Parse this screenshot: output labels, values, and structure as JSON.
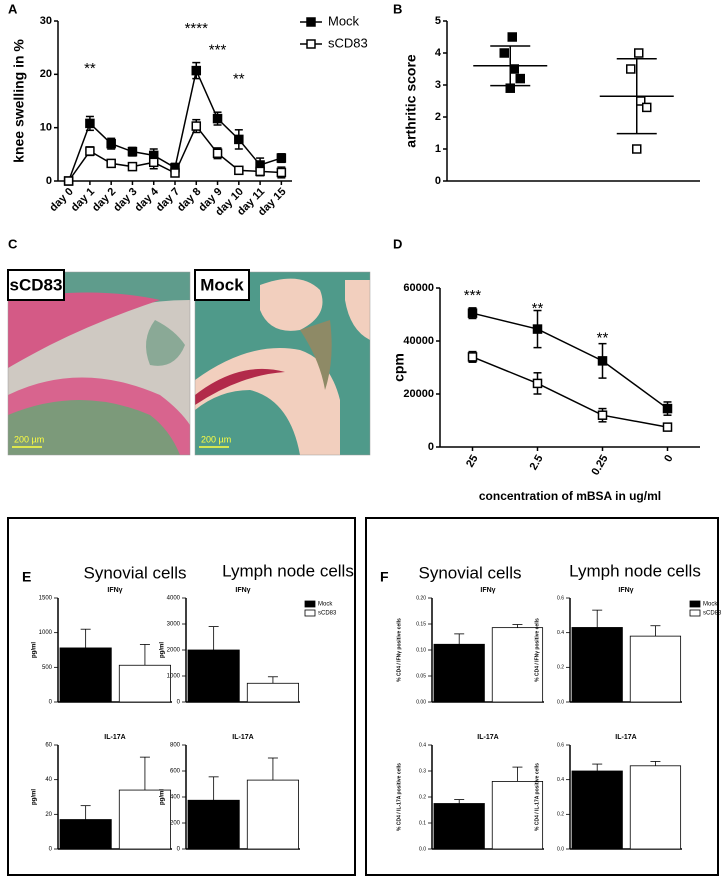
{
  "chart_data": [
    {
      "panel": "A",
      "type": "line",
      "y_label": "knee swelling in %",
      "categories": [
        "day 0",
        "day 1",
        "day 2",
        "day 3",
        "day 4",
        "day 7",
        "day 8",
        "day 9",
        "day 10",
        "day 11",
        "day 15"
      ],
      "series": [
        {
          "name": "Mock",
          "color": "#000000",
          "fill": "#000000",
          "values": [
            0,
            10.8,
            7,
            5.5,
            4.8,
            2.5,
            20.7,
            11.7,
            7.8,
            3,
            4.3
          ],
          "errors": [
            0,
            1.3,
            1,
            0.8,
            1.2,
            0.8,
            1.5,
            1.2,
            1.8,
            1.3,
            0.8
          ]
        },
        {
          "name": "sCD83",
          "color": "#000000",
          "fill": "#ffffff",
          "values": [
            0,
            5.6,
            3.3,
            2.7,
            3.5,
            1.5,
            10.3,
            5.2,
            2,
            1.8,
            1.6
          ],
          "errors": [
            0,
            0.8,
            0.7,
            0.7,
            1.2,
            0.5,
            1.2,
            1,
            0.5,
            0.8,
            1
          ]
        }
      ],
      "ylim": [
        0,
        30
      ],
      "yticks": [
        0,
        10,
        20,
        30
      ],
      "legend": "upper right",
      "annotations": [
        "**",
        "****",
        "***",
        "**"
      ]
    },
    {
      "panel": "B",
      "type": "dot",
      "y_label": "arthritic score",
      "series": [
        {
          "color": "#000000",
          "fill": "#000000",
          "values": [
            4.5,
            4,
            3.5,
            3.2,
            2.9
          ],
          "mean": 3.6,
          "error": 0.62
        },
        {
          "color": "#000000",
          "fill": "#ffffff",
          "values": [
            4,
            3.5,
            2.5,
            2.3,
            1
          ],
          "mean": 2.65,
          "error": 1.17
        }
      ],
      "ylim": [
        0,
        5
      ],
      "yticks": [
        0,
        1,
        2,
        3,
        4,
        5
      ]
    },
    {
      "panel": "D",
      "type": "line",
      "y_label": "cpm",
      "x_label": "concentration of mBSA in ug/ml",
      "categories": [
        "25",
        "2.5",
        "0.25",
        "0"
      ],
      "series": [
        {
          "color": "#000000",
          "fill": "#000000",
          "values": [
            50500,
            44500,
            32500,
            14500
          ],
          "errors": [
            2000,
            7000,
            6500,
            2500
          ]
        },
        {
          "color": "#000000",
          "fill": "#ffffff",
          "values": [
            34000,
            24000,
            12000,
            7500
          ],
          "errors": [
            2000,
            4000,
            2500,
            1000
          ]
        }
      ],
      "ylim": [
        0,
        60000
      ],
      "yticks": [
        0,
        20000,
        40000,
        60000
      ],
      "annotations": [
        "***",
        "**",
        "**"
      ]
    },
    {
      "type": "bar",
      "title": "IFNγ",
      "y_label": "pg/ml",
      "series": [
        {
          "color": "#000000",
          "fill": "#000000",
          "values": [
            780
          ],
          "errors": [
            270
          ]
        },
        {
          "color": "#000000",
          "fill": "#ffffff",
          "values": [
            530
          ],
          "errors": [
            300
          ]
        }
      ],
      "ylim": [
        0,
        1500
      ],
      "yticks": [
        0,
        500,
        1000,
        1500
      ]
    },
    {
      "type": "bar",
      "title": "IFNγ",
      "y_label": "pg/ml",
      "series": [
        {
          "name": "Mock",
          "color": "#000000",
          "fill": "#000000",
          "values": [
            2000
          ],
          "errors": [
            900
          ]
        },
        {
          "name": "sCD83",
          "color": "#000000",
          "fill": "#ffffff",
          "values": [
            720
          ],
          "errors": [
            250
          ]
        }
      ],
      "ylim": [
        0,
        4000
      ],
      "yticks": [
        0,
        1000,
        2000,
        3000,
        4000
      ],
      "legend": "right"
    },
    {
      "type": "bar",
      "title": "IL-17A",
      "y_label": "pg/ml",
      "series": [
        {
          "color": "#000000",
          "fill": "#000000",
          "values": [
            17
          ],
          "errors": [
            8
          ]
        },
        {
          "color": "#000000",
          "fill": "#ffffff",
          "values": [
            34
          ],
          "errors": [
            19
          ]
        }
      ],
      "ylim": [
        0,
        60
      ],
      "yticks": [
        0,
        20,
        40,
        60
      ]
    },
    {
      "type": "bar",
      "title": "IL-17A",
      "y_label": "pg/ml",
      "series": [
        {
          "color": "#000000",
          "fill": "#000000",
          "values": [
            375
          ],
          "errors": [
            180
          ]
        },
        {
          "color": "#000000",
          "fill": "#ffffff",
          "values": [
            530
          ],
          "errors": [
            170
          ]
        }
      ],
      "ylim": [
        0,
        800
      ],
      "yticks": [
        0,
        200,
        400,
        600,
        800
      ]
    },
    {
      "type": "bar",
      "title": "IFNγ",
      "y_label": "% CD4 / IFNγ positive cells",
      "series": [
        {
          "color": "#000000",
          "fill": "#000000",
          "values": [
            0.111
          ],
          "errors": [
            0.02
          ]
        },
        {
          "color": "#000000",
          "fill": "#ffffff",
          "values": [
            0.143
          ],
          "errors": [
            0.006
          ]
        }
      ],
      "ylim": [
        0,
        0.2
      ],
      "yticks": [
        {
          "value": 0,
          "label": "0.00"
        },
        0.05,
        {
          "value": 0.1,
          "label": "0.10"
        },
        0.15,
        {
          "value": 0.2,
          "label": "0.20"
        }
      ]
    },
    {
      "type": "bar",
      "title": "IFNγ",
      "y_label": "% CD4 / IFNγ positive cells",
      "series": [
        {
          "name": "Mock",
          "color": "#000000",
          "fill": "#000000",
          "values": [
            0.43
          ],
          "errors": [
            0.1
          ]
        },
        {
          "name": "sCD83",
          "color": "#000000",
          "fill": "#ffffff",
          "values": [
            0.38
          ],
          "errors": [
            0.06
          ]
        }
      ],
      "ylim": [
        0,
        0.6
      ],
      "yticks": [
        {
          "value": 0,
          "label": "0.0"
        },
        0.2,
        0.4,
        0.6
      ],
      "legend": "right"
    },
    {
      "type": "bar",
      "title": "IL-17A",
      "y_label": "% CD4 / IL-17A positive cells",
      "series": [
        {
          "color": "#000000",
          "fill": "#000000",
          "values": [
            0.175
          ],
          "errors": [
            0.015
          ]
        },
        {
          "color": "#000000",
          "fill": "#ffffff",
          "values": [
            0.26
          ],
          "errors": [
            0.055
          ]
        }
      ],
      "ylim": [
        0,
        0.4
      ],
      "yticks": [
        {
          "value": 0,
          "label": "0.0"
        },
        0.1,
        0.2,
        0.3,
        0.4
      ]
    },
    {
      "type": "bar",
      "title": "IL-17A",
      "y_label": "% CD4 / IL-17A positive cells",
      "series": [
        {
          "color": "#000000",
          "fill": "#000000",
          "values": [
            0.45
          ],
          "errors": [
            0.04
          ]
        },
        {
          "color": "#000000",
          "fill": "#ffffff",
          "values": [
            0.48
          ],
          "errors": [
            0.025
          ]
        }
      ],
      "ylim": [
        0,
        0.6
      ],
      "yticks": [
        {
          "value": 0,
          "label": "0.0"
        },
        0.2,
        0.4,
        0.6
      ]
    }
  ],
  "image_panel": {
    "panel": "C",
    "images": [
      {
        "label": "sCD83",
        "scale_bar": "200 µm"
      },
      {
        "label": "Mock",
        "scale_bar": "200 µm"
      }
    ]
  },
  "groups": [
    {
      "panel": "E",
      "headings": [
        "Synovial cells",
        "Lymph node cells"
      ]
    },
    {
      "panel": "F",
      "headings": [
        "Synovial cells",
        "Lymph node cells"
      ]
    }
  ]
}
